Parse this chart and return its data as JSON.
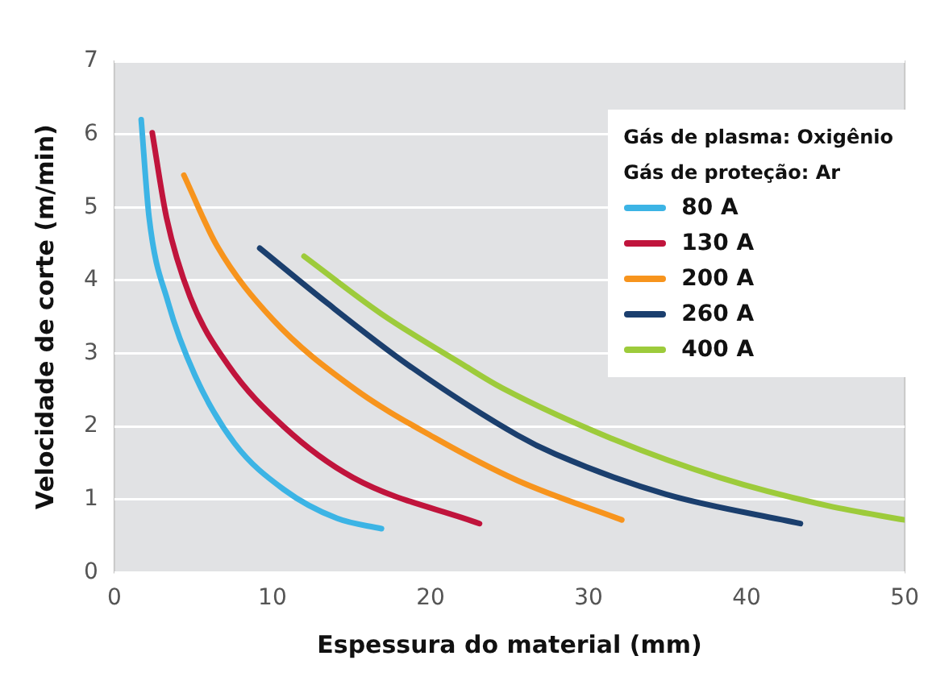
{
  "chart_data": {
    "type": "line",
    "xlabel": "Espessura do material (mm)",
    "ylabel": "Velocidade de corte (m/min)",
    "legend_title": "Gás de plasma: Oxigênio\nGás de proteção: Ar",
    "xlim": [
      0,
      50
    ],
    "xticks": [
      0,
      10,
      20,
      30,
      40,
      50
    ],
    "ylim": [
      0,
      7
    ],
    "yticks": [
      0,
      1,
      2,
      3,
      4,
      5,
      6,
      7
    ],
    "grid": "y",
    "legend": "top right",
    "marker": "none",
    "line_style": "solid",
    "series": [
      {
        "name": "80 A",
        "color": "#3cb4e5",
        "x": [
          1.7,
          2.2,
          3.4,
          5.1,
          7.6,
          10.7,
          14.1,
          16.9
        ],
        "values": [
          6.2,
          4.86,
          3.7,
          2.7,
          1.77,
          1.14,
          0.74,
          0.6
        ]
      },
      {
        "name": "130 A",
        "color": "#c0143c",
        "x": [
          2.4,
          3.3,
          4.8,
          7.2,
          10.7,
          15.1,
          23.1
        ],
        "values": [
          6.02,
          4.86,
          3.77,
          2.84,
          2.0,
          1.3,
          0.67
        ]
      },
      {
        "name": "200 A",
        "color": "#f7941d",
        "x": [
          4.4,
          6.5,
          10.0,
          15.1,
          20.3,
          25.5,
          32.1
        ],
        "values": [
          5.44,
          4.47,
          3.47,
          2.53,
          1.84,
          1.26,
          0.72
        ]
      },
      {
        "name": "260 A",
        "color": "#1b3f6e",
        "x": [
          9.2,
          13.4,
          18.6,
          25.5,
          27.9,
          34.9,
          43.4
        ],
        "values": [
          4.44,
          3.7,
          2.84,
          1.88,
          1.62,
          1.07,
          0.67
        ]
      },
      {
        "name": "400 A",
        "color": "#9dcb3b",
        "x": [
          12.0,
          16.9,
          22.1,
          24.5,
          31.4,
          38.3,
          45.2,
          50
        ],
        "values": [
          4.33,
          3.54,
          2.84,
          2.53,
          1.84,
          1.3,
          0.91,
          0.72
        ]
      }
    ]
  }
}
